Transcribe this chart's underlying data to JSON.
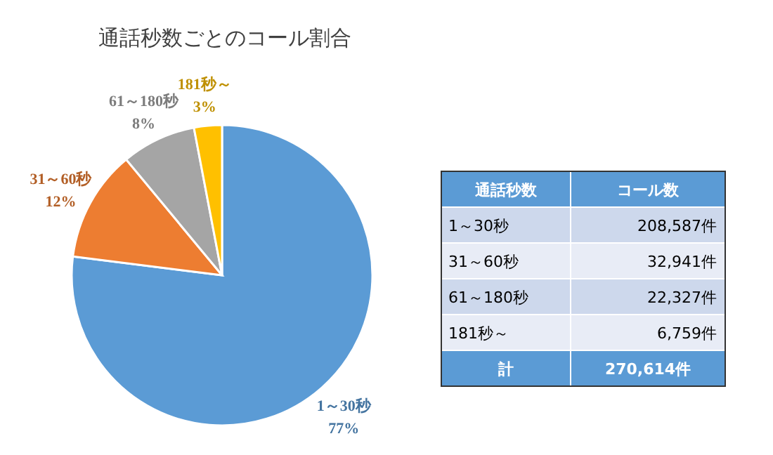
{
  "chart_data": [
    {
      "type": "pie",
      "title": "通話秒数ごとのコール割合",
      "categories": [
        "1～30秒",
        "31～60秒",
        "61～180秒",
        "181秒～"
      ],
      "values": [
        77,
        12,
        8,
        3
      ],
      "value_labels": [
        "77%",
        "12%",
        "8%",
        "3%"
      ],
      "colors": [
        "#5b9bd5",
        "#ed7d31",
        "#a5a5a5",
        "#ffc000"
      ]
    },
    {
      "type": "other",
      "annotations": [
        "通話秒数",
        "コール数",
        "1～30秒",
        "208,587件",
        "31～60秒",
        "32,941件",
        "61～180秒",
        "22,327件",
        "181秒～",
        "6,759件",
        "計",
        "270,614件"
      ]
    }
  ]
}
